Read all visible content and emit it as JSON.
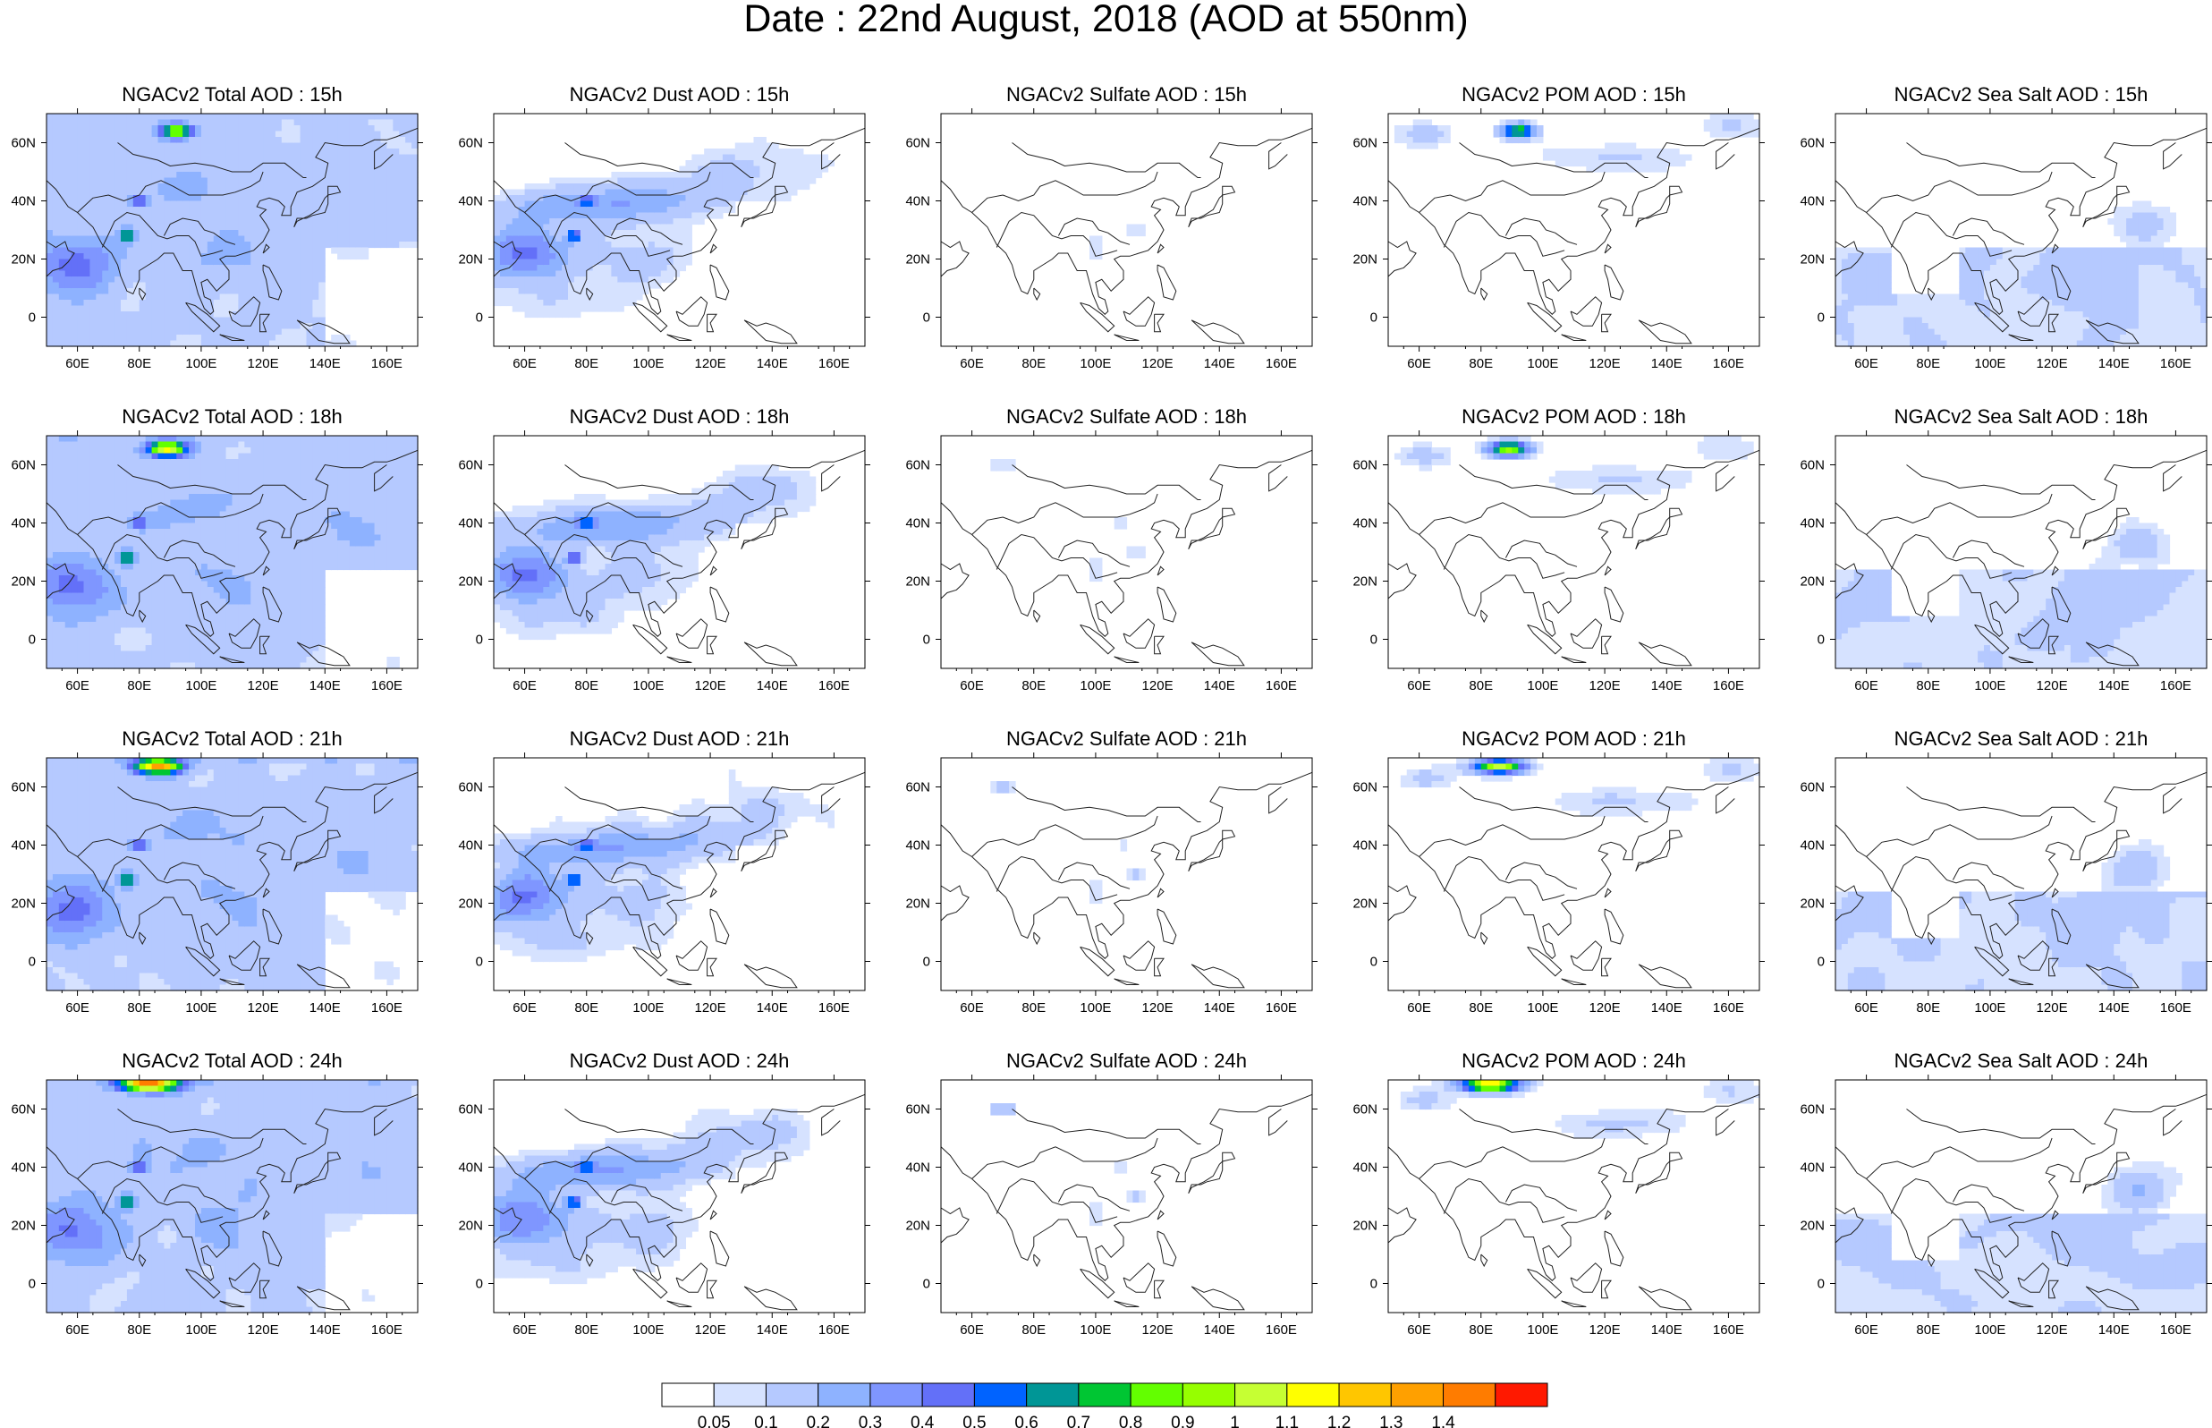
{
  "figure": {
    "title": "Date : 22nd August, 2018 (AOD at 550nm)"
  },
  "map_axes": {
    "lon_ticks": [
      "60E",
      "80E",
      "100E",
      "120E",
      "140E",
      "160E"
    ],
    "lon_values": [
      60,
      80,
      100,
      120,
      140,
      160
    ],
    "lat_ticks": [
      "60N",
      "40N",
      "20N",
      "0"
    ],
    "lat_values": [
      60,
      40,
      20,
      0
    ],
    "lon_range": [
      50,
      170
    ],
    "lat_range": [
      -10,
      70
    ]
  },
  "panels": [
    [
      "NGACv2 Total AOD : 15h",
      "NGACv2 Dust AOD : 15h",
      "NGACv2 Sulfate AOD : 15h",
      "NGACv2 POM AOD : 15h",
      "NGACv2 Sea Salt AOD : 15h"
    ],
    [
      "NGACv2 Total AOD : 18h",
      "NGACv2 Dust AOD : 18h",
      "NGACv2 Sulfate AOD : 18h",
      "NGACv2 POM AOD : 18h",
      "NGACv2 Sea Salt AOD : 18h"
    ],
    [
      "NGACv2 Total AOD : 21h",
      "NGACv2 Dust AOD : 21h",
      "NGACv2 Sulfate AOD : 21h",
      "NGACv2 POM AOD : 21h",
      "NGACv2 Sea Salt AOD : 21h"
    ],
    [
      "NGACv2 Total AOD : 24h",
      "NGACv2 Dust AOD : 24h",
      "NGACv2 Sulfate AOD : 24h",
      "NGACv2 POM AOD : 24h",
      "NGACv2 Sea Salt  AOD : 24h"
    ]
  ],
  "colorbar": {
    "labels": [
      "0.05",
      "0.1",
      "0.2",
      "0.3",
      "0.4",
      "0.5",
      "0.6",
      "0.7",
      "0.8",
      "0.9",
      "1",
      "1.1",
      "1.2",
      "1.3",
      "1.4"
    ],
    "colors": [
      "#ffffff",
      "#d6e2ff",
      "#b5c9ff",
      "#8eb2ff",
      "#7f96ff",
      "#6370f8",
      "#0063ff",
      "#009696",
      "#00c633",
      "#63ff00",
      "#96ff00",
      "#c6ff33",
      "#ffff00",
      "#ffc600",
      "#ffa000",
      "#ff7c00",
      "#ff1900"
    ]
  }
}
